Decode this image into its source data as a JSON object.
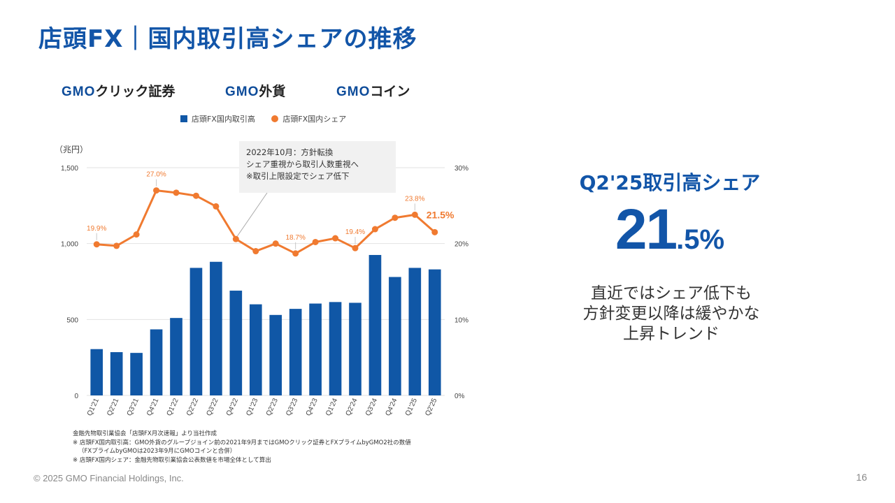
{
  "page": {
    "title": "店頭FX｜国内取引高シェアの推移",
    "footer": "© 2025 GMO Financial Holdings, Inc.",
    "page_number": "16"
  },
  "logos": [
    {
      "mark": "GMO",
      "suffix": "クリック証券"
    },
    {
      "mark": "GMO",
      "suffix": "外貨"
    },
    {
      "mark": "GMO",
      "suffix": "コイン"
    }
  ],
  "annotation": {
    "lines": [
      "2022年10月：方針転換",
      "シェア重視から取引人数重視へ",
      "※取引上限設定でシェア低下"
    ]
  },
  "notes": [
    "金融先物取引業協会「店頭FX月次速報」より当社作成",
    "※ 店頭FX国内取引高：GMO外貨のグループジョイン前の2021年9月まではGMOクリック証券とFXプライムbyGMO2社の数値",
    "（FXプライムbyGMOは2023年9月にGMOコインと合併）",
    "※ 店頭FX国内シェア：金融先物取引業協会公表数値を市場全体として算出"
  ],
  "side": {
    "headline": "Q2'25取引高シェア",
    "big_int": "21",
    "big_dec": ".5%",
    "text_lines": [
      "直近ではシェア低下も",
      "方針変更以降は緩やかな",
      "上昇トレンド"
    ]
  },
  "colors": {
    "bar": "#1057a6",
    "line": "#f07a30",
    "title": "#1255a8"
  },
  "chart_data": {
    "type": "bar",
    "unit_label": "（兆円）",
    "categories": [
      "Q1'21",
      "Q2'21",
      "Q3'21",
      "Q4'21",
      "Q1'22",
      "Q2'22",
      "Q3'22",
      "Q4'22",
      "Q1'23",
      "Q2'23",
      "Q3'23",
      "Q4'23",
      "Q1'24",
      "Q2'24",
      "Q3'24",
      "Q4'24",
      "Q1'25",
      "Q2'25"
    ],
    "series": [
      {
        "name": "店頭FX国内取引高",
        "type": "bar",
        "axis": "left",
        "values": [
          305,
          285,
          280,
          435,
          510,
          840,
          880,
          690,
          600,
          530,
          570,
          605,
          615,
          610,
          925,
          780,
          840,
          830
        ]
      },
      {
        "name": "店頭FX国内シェア",
        "type": "line",
        "axis": "right",
        "values": [
          19.9,
          19.7,
          21.2,
          27.0,
          26.7,
          26.3,
          24.9,
          20.6,
          19.0,
          20.0,
          18.7,
          20.2,
          20.7,
          19.4,
          21.9,
          23.4,
          23.8,
          21.5
        ]
      }
    ],
    "point_labels": [
      {
        "index": 0,
        "text": "19.9%"
      },
      {
        "index": 3,
        "text": "27.0%"
      },
      {
        "index": 10,
        "text": "18.7%"
      },
      {
        "index": 13,
        "text": "19.4%"
      },
      {
        "index": 16,
        "text": "23.8%"
      },
      {
        "index": 17,
        "text": "21.5%"
      }
    ],
    "yleft": {
      "ylim": [
        0,
        1500
      ],
      "ticks": [
        "0",
        "500",
        "1,000",
        "1,500"
      ],
      "values": [
        0,
        500,
        1000,
        1500
      ]
    },
    "yright": {
      "ylim": [
        0,
        30
      ],
      "ticks": [
        "0%",
        "10%",
        "20%",
        "30%"
      ],
      "values": [
        0,
        10,
        20,
        30
      ]
    },
    "annotation_index": 7,
    "grid": true,
    "legend_position": "top"
  }
}
